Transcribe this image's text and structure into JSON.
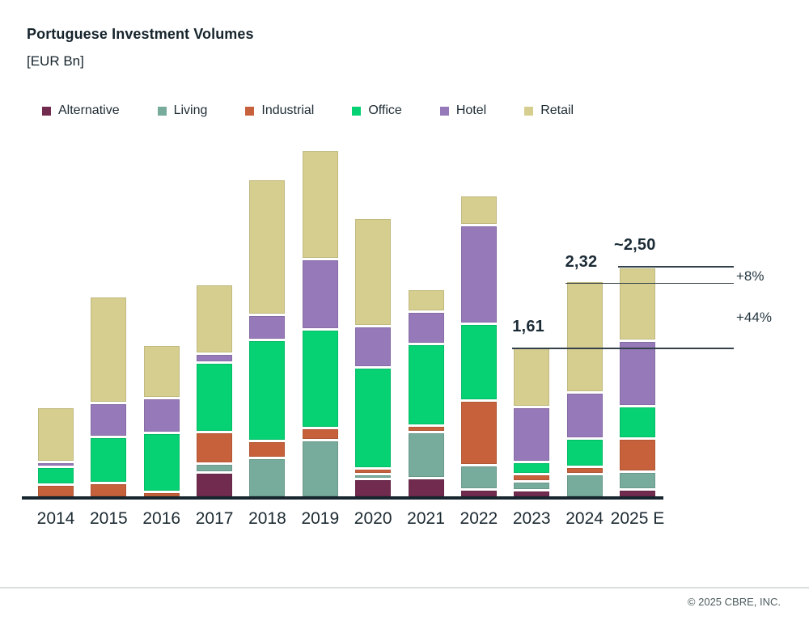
{
  "page": {
    "title": "Portuguese Investment Volumes",
    "subtitle": "[EUR Bn]",
    "footer": "© 2025 CBRE, INC."
  },
  "chart_data": {
    "type": "bar",
    "stacked": true,
    "title": "Portuguese Investment Volumes",
    "unit": "EUR Bn",
    "legend_position": "top",
    "grid": false,
    "ylim": [
      0,
      4
    ],
    "categories": [
      "2014",
      "2015",
      "2016",
      "2017",
      "2018",
      "2019",
      "2020",
      "2021",
      "2022",
      "2023",
      "2024",
      "2025 E"
    ],
    "series": [
      {
        "name": "Alternative",
        "color": "#702b4e",
        "values": [
          0,
          0,
          0,
          0.27,
          0,
          0,
          0.2,
          0.21,
          0.09,
          0.08,
          0,
          0.09
        ]
      },
      {
        "name": "Living",
        "color": "#77ab9b",
        "values": [
          0,
          0,
          0,
          0.1,
          0.43,
          0.62,
          0.05,
          0.5,
          0.26,
          0.1,
          0.25,
          0.19
        ]
      },
      {
        "name": "Industrial",
        "color": "#c6613c",
        "values": [
          0.14,
          0.16,
          0.06,
          0.34,
          0.18,
          0.13,
          0.06,
          0.07,
          0.7,
          0.08,
          0.08,
          0.36
        ]
      },
      {
        "name": "Office",
        "color": "#06d173",
        "values": [
          0.19,
          0.5,
          0.64,
          0.75,
          1.1,
          1.07,
          1.1,
          0.89,
          0.83,
          0.13,
          0.31,
          0.35
        ]
      },
      {
        "name": "Hotel",
        "color": "#9679b8",
        "values": [
          0.05,
          0.37,
          0.38,
          0.1,
          0.27,
          0.76,
          0.45,
          0.35,
          1.07,
          0.6,
          0.5,
          0.71
        ]
      },
      {
        "name": "Retail",
        "color": "#d6ce8f",
        "values": [
          0.57,
          1.13,
          0.55,
          0.73,
          1.45,
          1.16,
          1.15,
          0.22,
          0.3,
          0.62,
          1.18,
          0.77
        ]
      }
    ],
    "annotations": {
      "totals": [
        {
          "category": "2023",
          "label": "1,61",
          "value": 1.61
        },
        {
          "category": "2024",
          "label": "2,32",
          "value": 2.32
        },
        {
          "category": "2025 E",
          "label": "~2,50",
          "value": 2.5
        }
      ],
      "growth": [
        {
          "label": "+8%",
          "from": "2024",
          "to": "2025 E"
        },
        {
          "label": "+44%",
          "from": "2023",
          "to": "2024"
        }
      ]
    }
  }
}
